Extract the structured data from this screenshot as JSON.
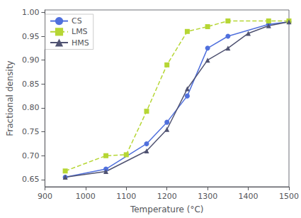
{
  "chart_data": {
    "type": "line",
    "xlabel": "Temperature (°C)",
    "ylabel": "Fractional density",
    "series": [
      {
        "name": "CS",
        "x": [
          950,
          1050,
          1150,
          1200,
          1250,
          1300,
          1350,
          1450,
          1500
        ],
        "values": [
          0.655,
          0.672,
          0.725,
          0.77,
          0.825,
          0.925,
          0.95,
          0.975,
          0.98
        ],
        "marker": "circle",
        "line_style": "solid"
      },
      {
        "name": "LMS",
        "x": [
          950,
          1050,
          1100,
          1150,
          1200,
          1250,
          1300,
          1350,
          1450,
          1500
        ],
        "values": [
          0.668,
          0.7,
          0.702,
          0.793,
          0.89,
          0.96,
          0.97,
          0.982,
          0.982,
          0.982
        ],
        "marker": "square",
        "line_style": "dashed"
      },
      {
        "name": "HMS",
        "x": [
          950,
          1050,
          1150,
          1200,
          1250,
          1300,
          1350,
          1400,
          1450,
          1500
        ],
        "values": [
          0.655,
          0.667,
          0.71,
          0.755,
          0.84,
          0.9,
          0.925,
          0.956,
          0.972,
          0.98
        ],
        "marker": "triangle",
        "line_style": "solid"
      }
    ],
    "xlim": [
      900,
      1500
    ],
    "xticks": [
      900,
      1000,
      1100,
      1200,
      1300,
      1400,
      1500
    ],
    "ylim": [
      0.635,
      1.005
    ],
    "yticks": [
      0.65,
      {
        "value": 0.7,
        "label": "0.70"
      },
      0.75,
      {
        "value": 0.8,
        "label": "0.80"
      },
      0.85,
      {
        "value": 0.9,
        "label": "0.90"
      },
      0.95,
      {
        "value": 1.0,
        "label": "1.00"
      }
    ],
    "grid": false,
    "legend": "upper left"
  }
}
